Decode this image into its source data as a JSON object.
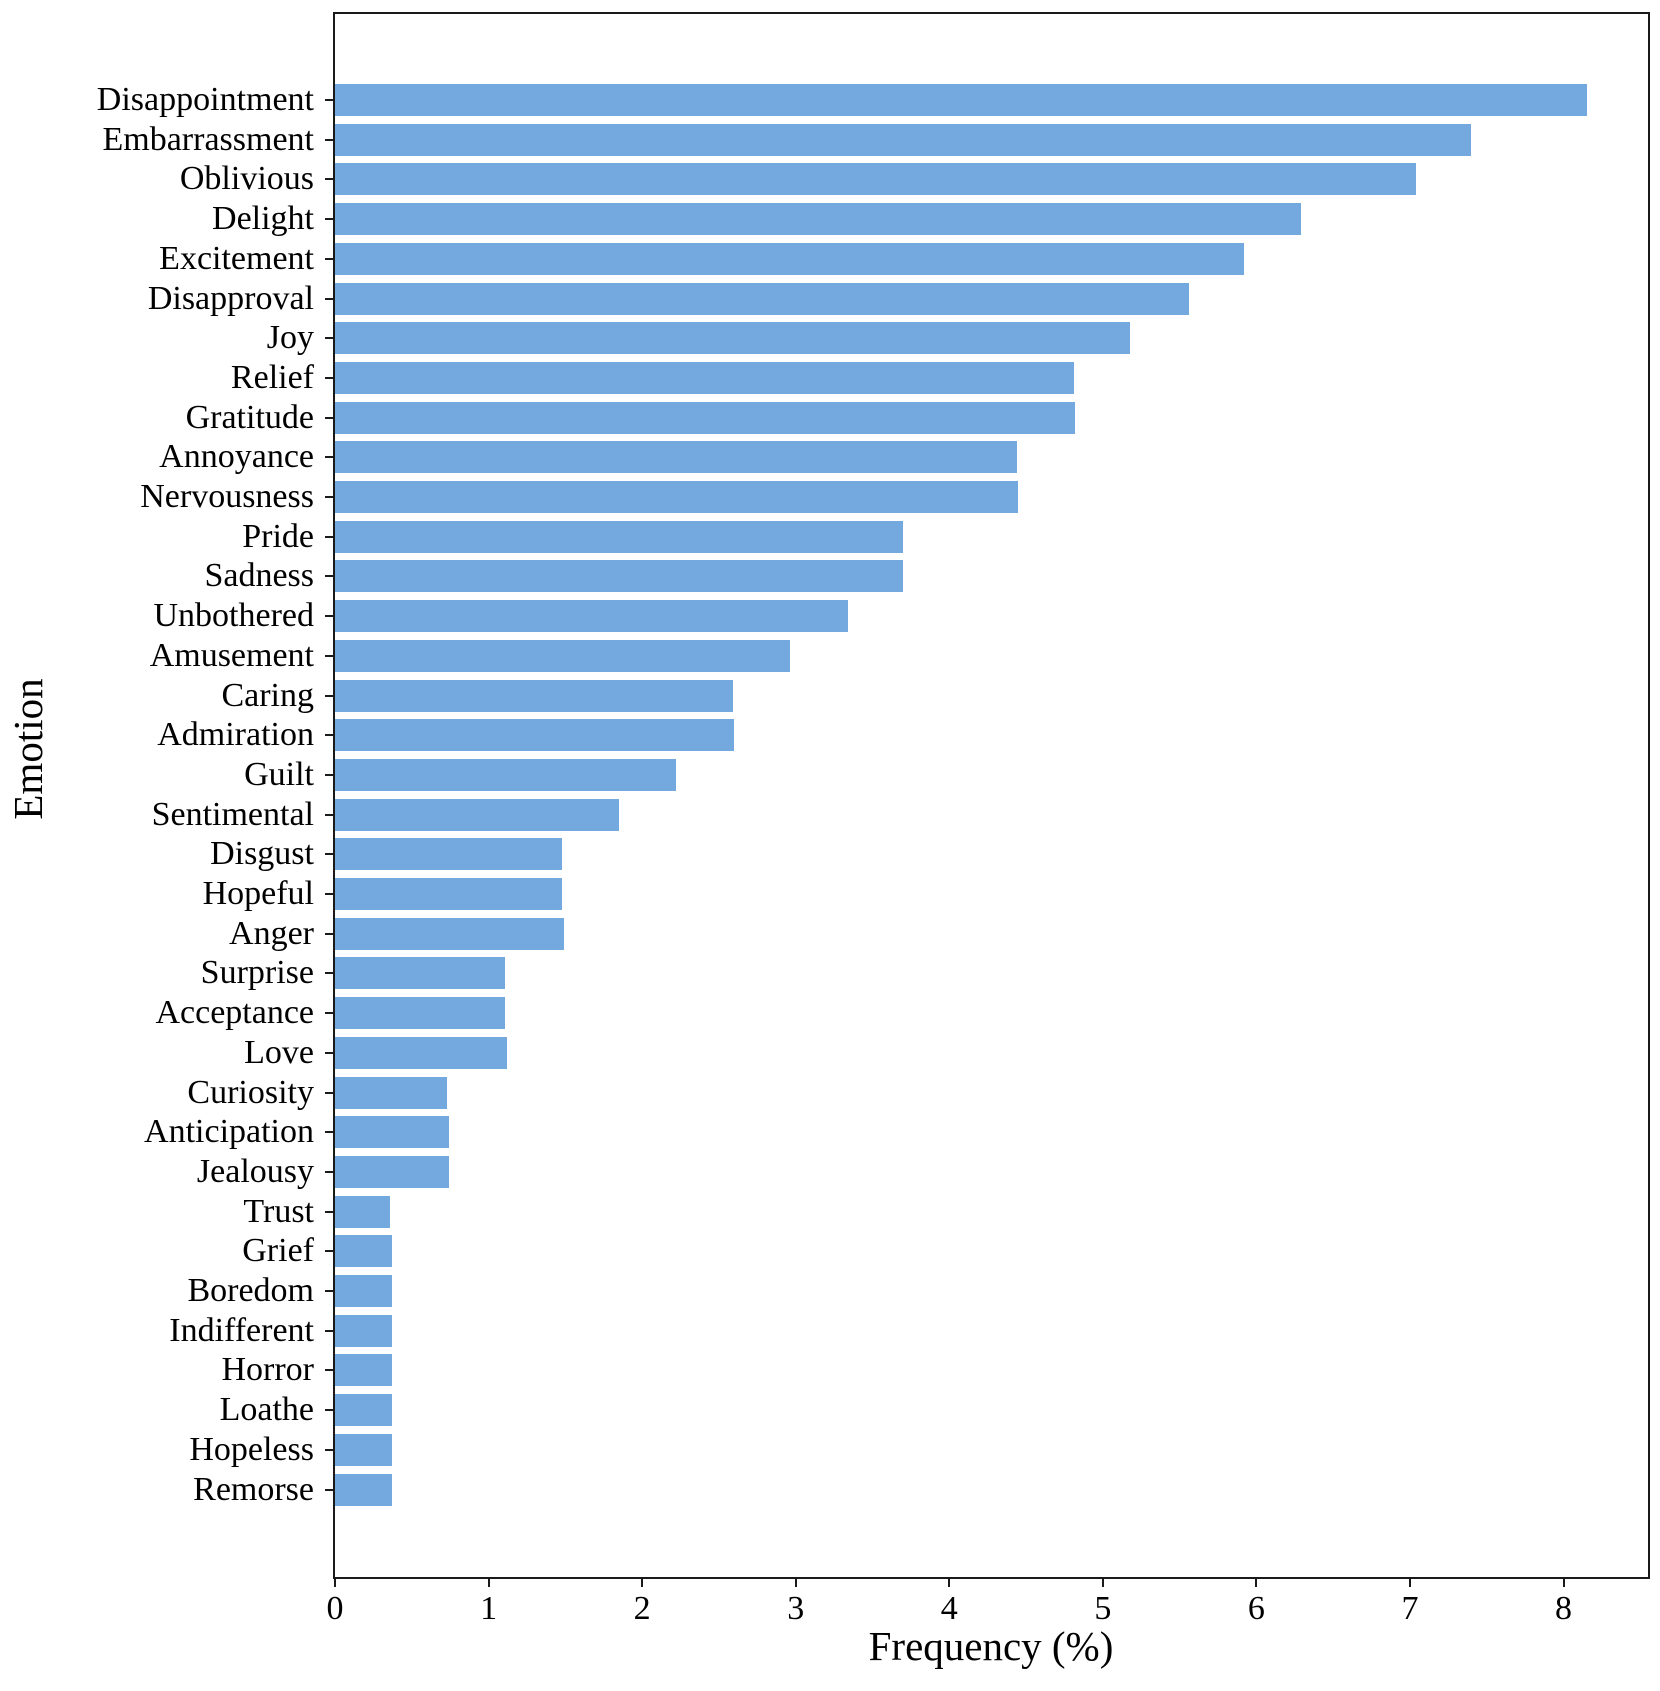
{
  "chart_data": {
    "type": "bar",
    "orientation": "horizontal",
    "title": "",
    "xlabel": "Frequency (%)",
    "ylabel": "Emotion",
    "xlim": [
      0,
      8.55
    ],
    "xticks": [
      0,
      1,
      2,
      3,
      4,
      5,
      6,
      7,
      8
    ],
    "grid": false,
    "bar_color": "#74a9df",
    "axis_color": "#1a1a1a",
    "categories": [
      "Disappointment",
      "Embarrassment",
      "Oblivious",
      "Delight",
      "Excitement",
      "Disapproval",
      "Joy",
      "Relief",
      "Gratitude",
      "Annoyance",
      "Nervousness",
      "Pride",
      "Sadness",
      "Unbothered",
      "Amusement",
      "Caring",
      "Admiration",
      "Guilt",
      "Sentimental",
      "Disgust",
      "Hopeful",
      "Anger",
      "Surprise",
      "Acceptance",
      "Love",
      "Curiosity",
      "Anticipation",
      "Jealousy",
      "Trust",
      "Grief",
      "Boredom",
      "Indifferent",
      "Horror",
      "Loathe",
      "Hopeless",
      "Remorse"
    ],
    "values": [
      8.15,
      7.4,
      7.04,
      6.29,
      5.92,
      5.56,
      5.18,
      4.81,
      4.82,
      4.44,
      4.45,
      3.7,
      3.7,
      3.34,
      2.96,
      2.59,
      2.6,
      2.22,
      1.85,
      1.48,
      1.48,
      1.49,
      1.11,
      1.11,
      1.12,
      0.73,
      0.74,
      0.74,
      0.36,
      0.37,
      0.37,
      0.37,
      0.37,
      0.37,
      0.37,
      0.37
    ]
  }
}
